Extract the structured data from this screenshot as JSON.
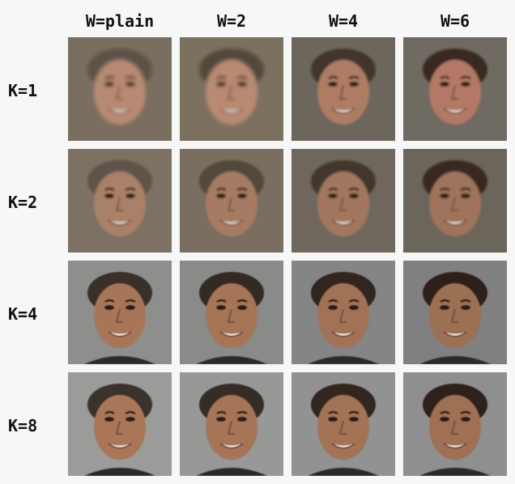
{
  "columns": [
    "W=plain",
    "W=2",
    "W=4",
    "W=6"
  ],
  "rows": [
    "K=1",
    "K=2",
    "K=4",
    "K=8"
  ],
  "grid_description": "4x4 grid of generated face images; rows vary K, columns vary W"
}
